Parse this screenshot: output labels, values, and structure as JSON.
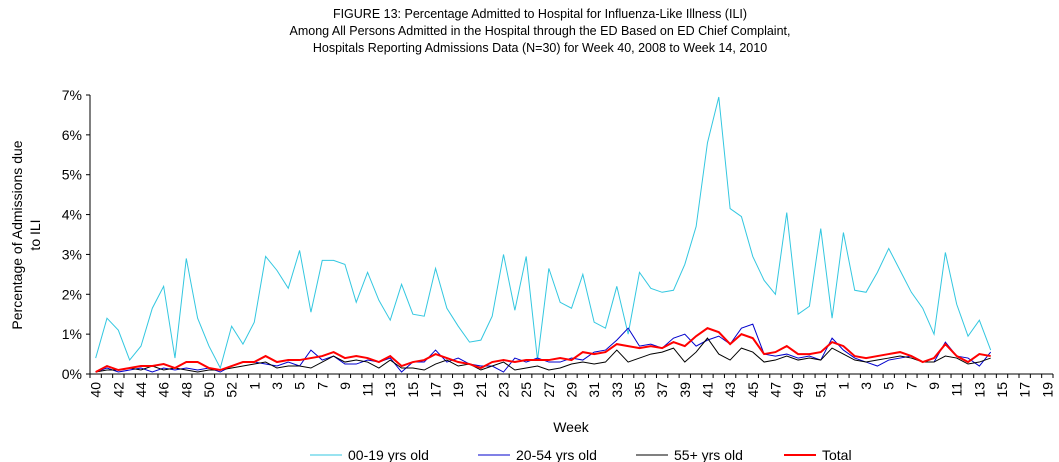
{
  "chart_data": {
    "type": "line",
    "title": [
      "FIGURE 13: Percentage Admitted to Hospital for Influenza-Like Illness (ILI)",
      "Among All Persons Admitted in the Hospital through the ED Based on ED Chief Complaint,",
      "Hospitals Reporting Admissions Data (N=30) for Week 40, 2008 to Week 14, 2010"
    ],
    "x_label": "Week",
    "y_label": [
      "Percentage of Admissions due",
      "to ILI"
    ],
    "categories": [
      "40",
      null,
      "42",
      null,
      "44",
      null,
      "46",
      null,
      "48",
      null,
      "50",
      null,
      "52",
      null,
      "1",
      null,
      "3",
      null,
      "5",
      null,
      "7",
      null,
      "9",
      null,
      "11",
      null,
      "13",
      null,
      "15",
      null,
      "17",
      null,
      "19",
      null,
      "21",
      null,
      "23",
      null,
      "25",
      null,
      "27",
      null,
      "29",
      null,
      "31",
      null,
      "33",
      null,
      "35",
      null,
      "37",
      null,
      "39",
      null,
      "41",
      null,
      "43",
      null,
      "45",
      null,
      "47",
      null,
      "49",
      null,
      "51",
      null,
      "1",
      null,
      "3",
      null,
      "5",
      null,
      "7",
      null,
      "9",
      null,
      "11",
      null,
      "13",
      null,
      "15",
      null,
      "17",
      null,
      "19"
    ],
    "ylim": [
      0,
      7
    ],
    "yticks": [
      {
        "value": 0,
        "label": "0%"
      },
      {
        "value": 1,
        "label": "1%"
      },
      {
        "value": 2,
        "label": "2%"
      },
      {
        "value": 3,
        "label": "3%"
      },
      {
        "value": 4,
        "label": "4%"
      },
      {
        "value": 5,
        "label": "5%"
      },
      {
        "value": 6,
        "label": "6%"
      },
      {
        "value": 7,
        "label": "7%"
      }
    ],
    "grid": false,
    "legend": "bottom",
    "series": [
      {
        "name": "00-19 yrs old",
        "color": "#33c7e0",
        "width": 1,
        "values": [
          0.4,
          1.4,
          1.1,
          0.35,
          0.7,
          1.65,
          2.2,
          0.4,
          2.9,
          1.4,
          0.7,
          0.15,
          1.2,
          0.75,
          1.3,
          2.95,
          2.6,
          2.15,
          3.1,
          1.55,
          2.85,
          2.85,
          2.75,
          1.8,
          2.55,
          1.85,
          1.35,
          2.25,
          1.5,
          1.45,
          2.65,
          1.65,
          1.2,
          0.8,
          0.85,
          1.45,
          3.0,
          1.6,
          2.95,
          0.35,
          2.65,
          1.8,
          1.65,
          2.5,
          1.3,
          1.15,
          2.2,
          1.0,
          2.55,
          2.15,
          2.05,
          2.1,
          2.75,
          3.7,
          5.8,
          6.95,
          4.15,
          3.95,
          2.95,
          2.35,
          2.0,
          4.05,
          1.5,
          1.7,
          3.65,
          1.4,
          3.55,
          2.1,
          2.05,
          2.55,
          3.15,
          2.6,
          2.05,
          1.65,
          1.0,
          3.05,
          1.75,
          0.95,
          1.35,
          0.6,
          null,
          null,
          null,
          null,
          null
        ]
      },
      {
        "name": "20-54 yrs old",
        "color": "#0000cc",
        "width": 1,
        "values": [
          0.05,
          0.15,
          0.05,
          0.1,
          0.15,
          0.05,
          0.15,
          0.1,
          0.15,
          0.1,
          0.15,
          0.05,
          0.2,
          0.3,
          0.3,
          0.25,
          0.2,
          0.3,
          0.2,
          0.6,
          0.35,
          0.45,
          0.25,
          0.25,
          0.35,
          0.3,
          0.4,
          0.05,
          0.3,
          0.3,
          0.6,
          0.3,
          0.4,
          0.25,
          0.2,
          0.2,
          0.05,
          0.4,
          0.3,
          0.4,
          0.3,
          0.3,
          0.4,
          0.35,
          0.55,
          0.6,
          0.85,
          1.15,
          0.7,
          0.75,
          0.65,
          0.9,
          1.0,
          0.7,
          0.85,
          0.95,
          0.75,
          1.15,
          1.25,
          0.5,
          0.45,
          0.5,
          0.4,
          0.45,
          0.35,
          0.9,
          0.6,
          0.4,
          0.3,
          0.2,
          0.35,
          0.4,
          0.45,
          0.3,
          0.3,
          0.8,
          0.45,
          0.4,
          0.2,
          0.55,
          null,
          null,
          null,
          null,
          null
        ]
      },
      {
        "name": "55+ yrs old",
        "color": "#000000",
        "width": 1,
        "values": [
          0.05,
          0.1,
          0.1,
          0.15,
          0.1,
          0.2,
          0.1,
          0.15,
          0.1,
          0.05,
          0.1,
          0.1,
          0.15,
          0.2,
          0.25,
          0.3,
          0.15,
          0.2,
          0.2,
          0.15,
          0.3,
          0.45,
          0.3,
          0.35,
          0.3,
          0.15,
          0.35,
          0.15,
          0.15,
          0.1,
          0.25,
          0.35,
          0.2,
          0.25,
          0.1,
          0.2,
          0.3,
          0.1,
          0.15,
          0.2,
          0.1,
          0.15,
          0.25,
          0.3,
          0.25,
          0.3,
          0.6,
          0.3,
          0.4,
          0.5,
          0.55,
          0.65,
          0.3,
          0.55,
          0.9,
          0.5,
          0.35,
          0.65,
          0.55,
          0.3,
          0.35,
          0.45,
          0.35,
          0.4,
          0.35,
          0.65,
          0.5,
          0.35,
          0.3,
          0.35,
          0.4,
          0.45,
          0.4,
          0.3,
          0.3,
          0.45,
          0.4,
          0.25,
          0.3,
          0.4,
          null,
          null,
          null,
          null,
          null
        ]
      },
      {
        "name": "Total",
        "color": "#ff0000",
        "width": 2,
        "values": [
          0.05,
          0.2,
          0.1,
          0.15,
          0.2,
          0.2,
          0.25,
          0.15,
          0.3,
          0.3,
          0.15,
          0.1,
          0.2,
          0.3,
          0.3,
          0.45,
          0.3,
          0.35,
          0.35,
          0.4,
          0.45,
          0.55,
          0.4,
          0.45,
          0.4,
          0.3,
          0.45,
          0.2,
          0.3,
          0.35,
          0.5,
          0.4,
          0.3,
          0.25,
          0.15,
          0.3,
          0.35,
          0.3,
          0.35,
          0.35,
          0.35,
          0.4,
          0.35,
          0.55,
          0.5,
          0.55,
          0.75,
          0.7,
          0.65,
          0.7,
          0.65,
          0.8,
          0.7,
          0.95,
          1.15,
          1.05,
          0.75,
          1.0,
          0.9,
          0.5,
          0.55,
          0.7,
          0.5,
          0.5,
          0.55,
          0.8,
          0.7,
          0.45,
          0.4,
          0.45,
          0.5,
          0.55,
          0.45,
          0.3,
          0.4,
          0.75,
          0.45,
          0.3,
          0.5,
          0.45,
          null,
          null,
          null,
          null,
          null
        ]
      }
    ]
  }
}
